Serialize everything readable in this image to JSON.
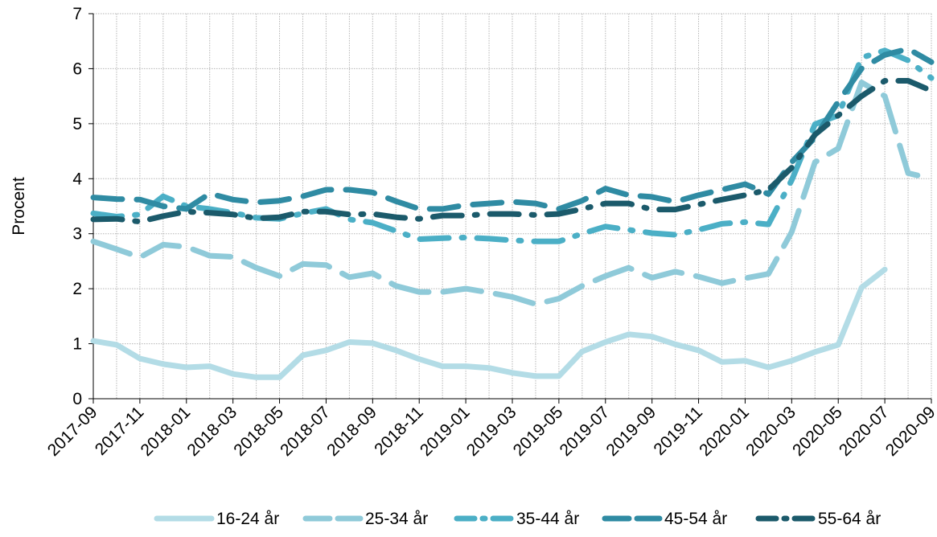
{
  "chart_data": {
    "type": "line",
    "title": "",
    "xlabel": "",
    "ylabel": "Procent",
    "ylim": [
      0,
      7
    ],
    "yticks": [
      "0",
      "1",
      "2",
      "3",
      "4",
      "5",
      "6",
      "7"
    ],
    "grid": true,
    "legend_position": "bottom",
    "x": [
      "2017-09",
      "2017-10",
      "2017-11",
      "2017-12",
      "2018-01",
      "2018-02",
      "2018-03",
      "2018-04",
      "2018-05",
      "2018-06",
      "2018-07",
      "2018-08",
      "2018-09",
      "2018-10",
      "2018-11",
      "2018-12",
      "2019-01",
      "2019-02",
      "2019-03",
      "2019-04",
      "2019-05",
      "2019-06",
      "2019-07",
      "2019-08",
      "2019-09",
      "2019-10",
      "2019-11",
      "2019-12",
      "2020-01",
      "2020-02",
      "2020-03",
      "2020-04",
      "2020-05",
      "2020-06",
      "2020-07",
      "2020-08",
      "2020-09"
    ],
    "xtick_labels": [
      "2017-09",
      "2017-11",
      "2018-01",
      "2018-03",
      "2018-05",
      "2018-07",
      "2018-09",
      "2018-11",
      "2019-01",
      "2019-03",
      "2019-05",
      "2019-07",
      "2019-09",
      "2019-11",
      "2020-01",
      "2020-03",
      "2020-05",
      "2020-07",
      "2020-09"
    ],
    "series": [
      {
        "name": "16-24 år",
        "color": "#b3dce6",
        "dash": "solid",
        "values": [
          1.05,
          0.98,
          0.73,
          0.63,
          0.57,
          0.59,
          0.45,
          0.39,
          0.39,
          0.79,
          0.88,
          1.03,
          1.01,
          0.88,
          0.72,
          0.59,
          0.59,
          0.56,
          0.47,
          0.41,
          0.41,
          0.86,
          1.03,
          1.17,
          1.13,
          0.99,
          0.88,
          0.67,
          0.69,
          0.57,
          0.69,
          0.85,
          0.98,
          2.02,
          2.35,
          null,
          null
        ]
      },
      {
        "name": "25-34 år",
        "color": "#8fcad9",
        "dash": "longdash",
        "values": [
          2.86,
          2.72,
          2.57,
          2.8,
          2.76,
          2.6,
          2.58,
          2.38,
          2.23,
          2.45,
          2.43,
          2.21,
          2.28,
          2.05,
          1.94,
          1.94,
          2.0,
          1.93,
          1.85,
          1.72,
          1.82,
          2.05,
          2.23,
          2.38,
          2.2,
          2.31,
          2.22,
          2.1,
          2.19,
          2.27,
          3.03,
          4.3,
          4.55,
          5.75,
          5.5,
          4.1,
          4.0
        ]
      },
      {
        "name": "35-44 år",
        "color": "#4bafc6",
        "dash": "dashdot",
        "values": [
          3.37,
          3.31,
          3.35,
          3.68,
          3.5,
          3.45,
          3.38,
          3.29,
          3.27,
          3.37,
          3.45,
          3.26,
          3.2,
          3.05,
          2.9,
          2.92,
          2.93,
          2.91,
          2.88,
          2.86,
          2.86,
          3.0,
          3.13,
          3.07,
          3.01,
          2.98,
          3.07,
          3.18,
          3.21,
          3.17,
          3.97,
          4.99,
          5.15,
          6.2,
          6.33,
          6.15,
          5.83
        ]
      },
      {
        "name": "45-54 år",
        "color": "#2f8ba3",
        "dash": "dash",
        "values": [
          3.66,
          3.63,
          3.62,
          3.5,
          3.45,
          3.73,
          3.62,
          3.57,
          3.6,
          3.68,
          3.8,
          3.8,
          3.75,
          3.59,
          3.45,
          3.45,
          3.52,
          3.55,
          3.58,
          3.55,
          3.45,
          3.6,
          3.82,
          3.7,
          3.67,
          3.58,
          3.7,
          3.8,
          3.9,
          3.72,
          4.3,
          4.75,
          5.4,
          6.0,
          6.25,
          6.36,
          6.12
        ]
      },
      {
        "name": "55-64 år",
        "color": "#1b5a6b",
        "dash": "dashdot",
        "values": [
          3.26,
          3.27,
          3.22,
          3.32,
          3.4,
          3.38,
          3.35,
          3.28,
          3.3,
          3.4,
          3.4,
          3.35,
          3.36,
          3.3,
          3.27,
          3.33,
          3.33,
          3.36,
          3.36,
          3.34,
          3.36,
          3.45,
          3.55,
          3.55,
          3.44,
          3.44,
          3.53,
          3.62,
          3.7,
          3.8,
          4.2,
          4.8,
          5.15,
          5.5,
          5.78,
          5.78,
          5.6
        ]
      }
    ]
  }
}
